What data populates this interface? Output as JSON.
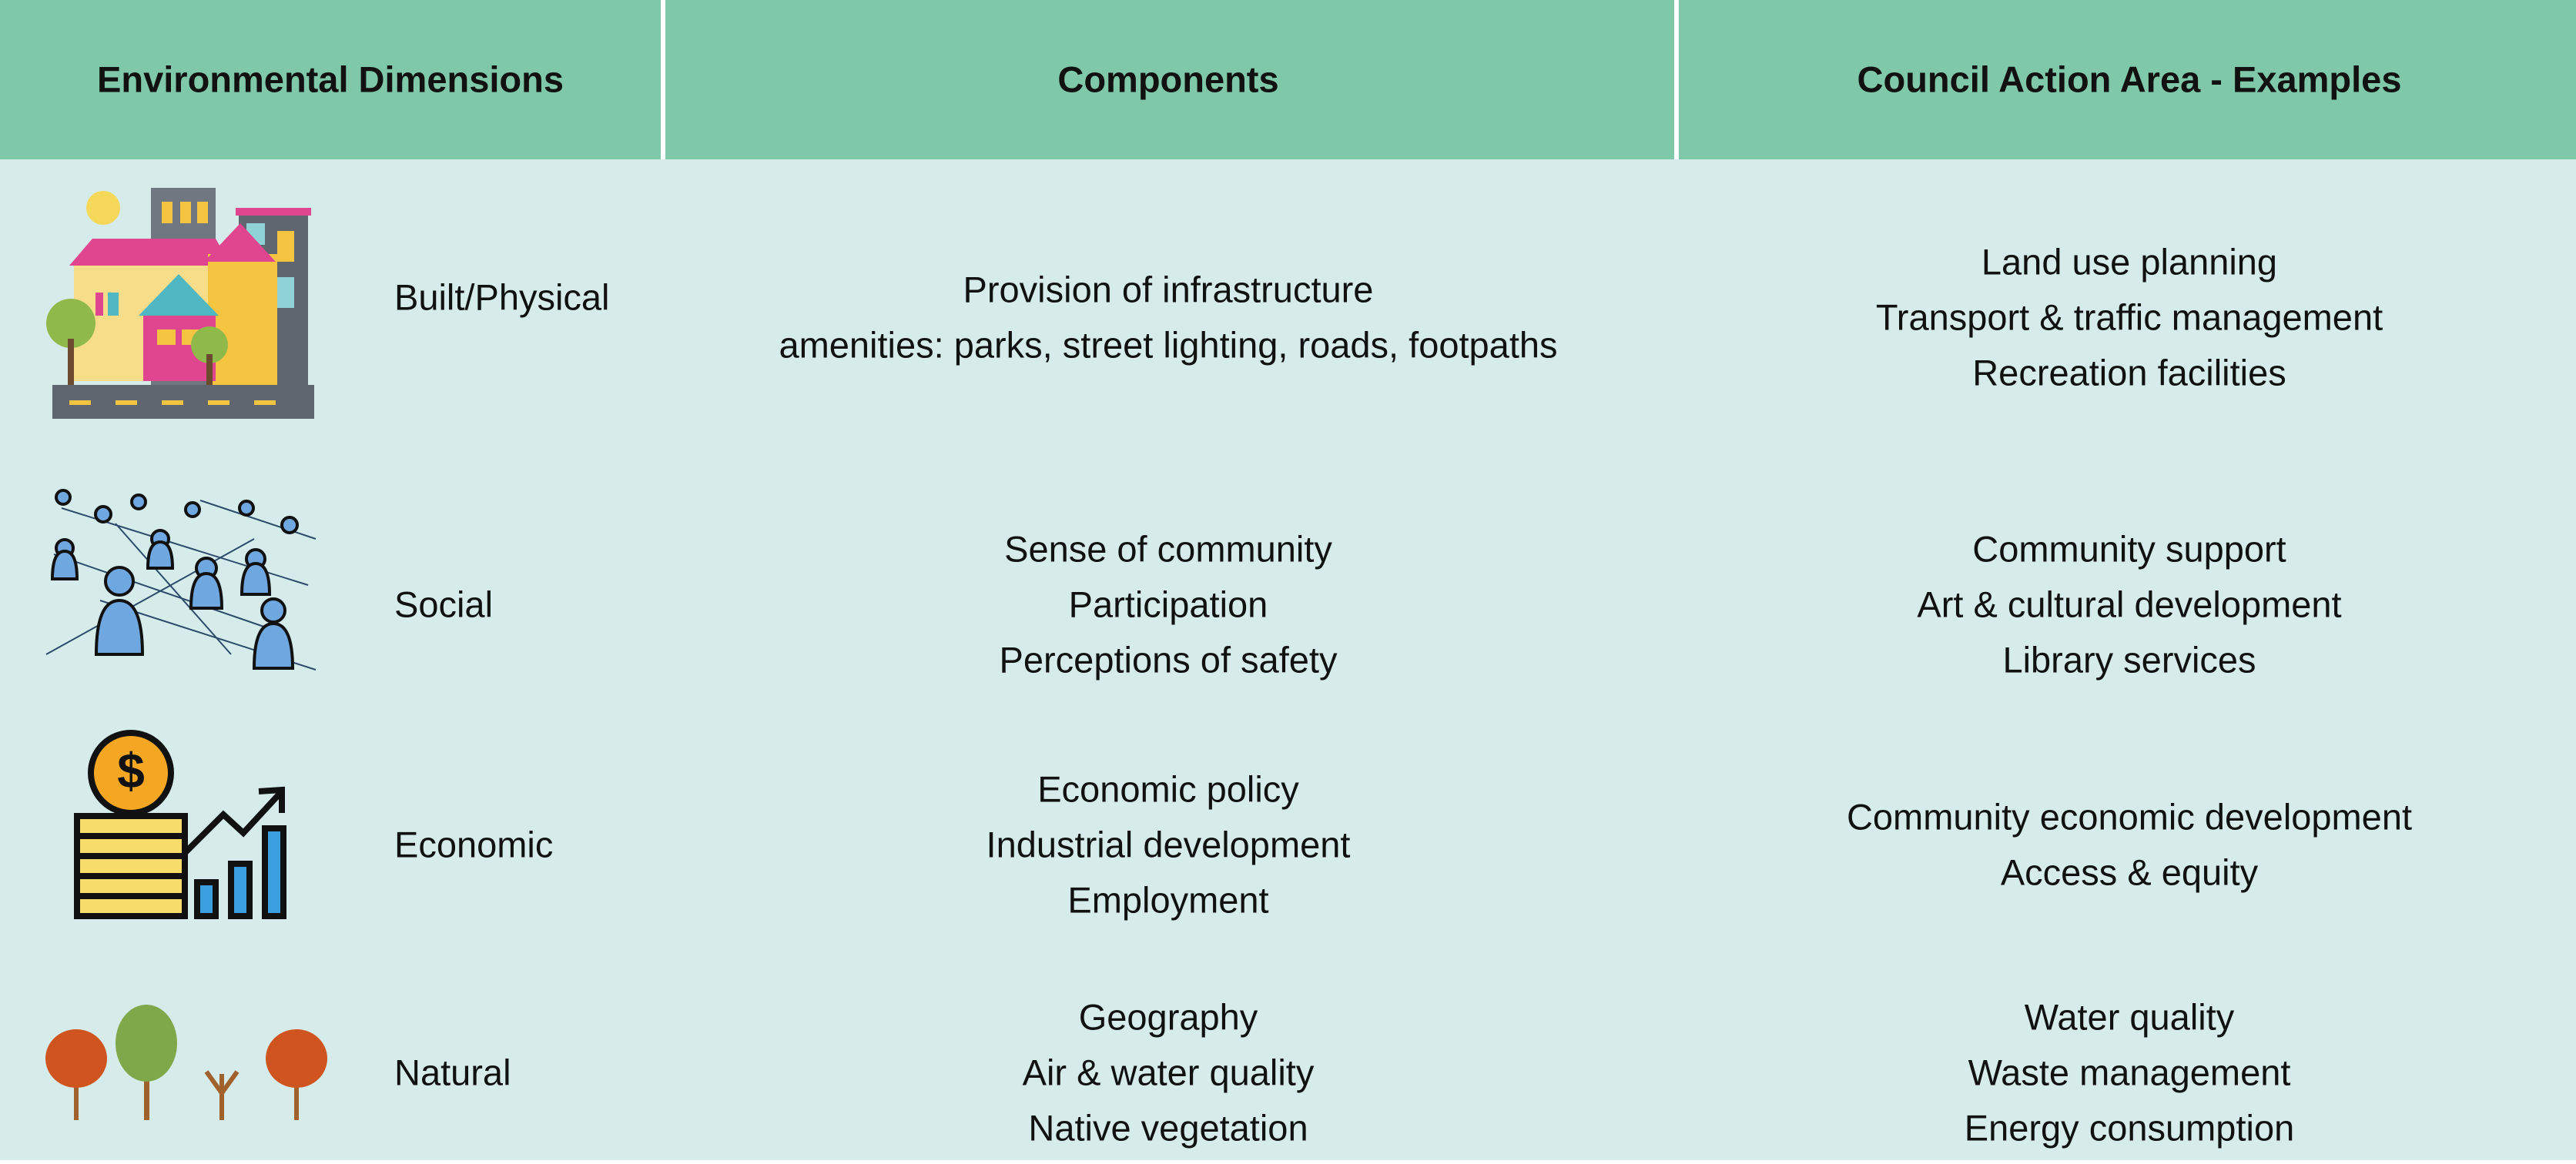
{
  "header": [
    "Environmental Dimensions",
    "Components",
    "Council Action Area - Examples"
  ],
  "rows": [
    {
      "dimension": "Built/Physical",
      "components": [
        "Provision of infrastructure",
        "amenities: parks, street lighting, roads, footpaths"
      ],
      "actions": [
        "Land use planning",
        "Transport & traffic management",
        "Recreation facilities"
      ]
    },
    {
      "dimension": "Social",
      "components": [
        "Sense of community",
        "Participation",
        "Perceptions of safety"
      ],
      "actions": [
        "Community support",
        "Art & cultural development",
        "Library services"
      ]
    },
    {
      "dimension": "Economic",
      "components": [
        "Economic policy",
        "Industrial development",
        "Employment"
      ],
      "actions": [
        "Community economic development",
        "Access & equity"
      ]
    },
    {
      "dimension": "Natural",
      "components": [
        "Geography",
        "Air & water quality",
        "Native vegetation"
      ],
      "actions": [
        "Water quality",
        "Waste management",
        "Energy consumption"
      ]
    }
  ]
}
